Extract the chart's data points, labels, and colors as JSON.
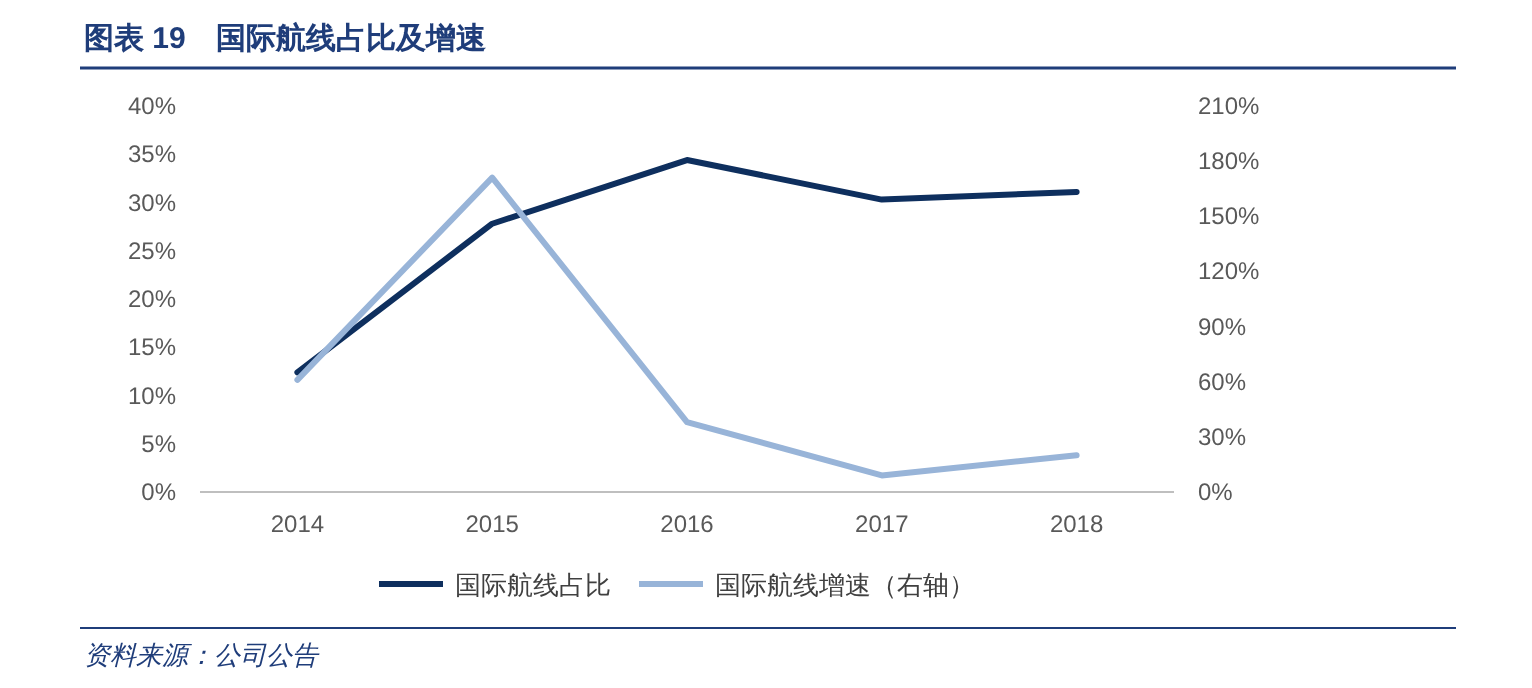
{
  "chart_data": {
    "type": "line",
    "title": "图表 19　国际航线占比及增速",
    "categories": [
      "2014",
      "2015",
      "2016",
      "2017",
      "2018"
    ],
    "series": [
      {
        "name": "国际航线占比",
        "color": "#0e2f5e",
        "values": [
          12.4,
          27.8,
          34.4,
          30.3,
          31.1
        ]
      },
      {
        "name": "国际航线增速（右轴）",
        "color": "#98b4d8",
        "axis": "y2",
        "values": [
          61,
          171,
          38,
          9,
          20
        ]
      }
    ],
    "ylim": [
      0,
      40
    ],
    "yticks": [
      {
        "value": 0,
        "label": "0%"
      },
      {
        "value": 5,
        "label": "5%"
      },
      {
        "value": 10,
        "label": "10%"
      },
      {
        "value": 15,
        "label": "15%"
      },
      {
        "value": 20,
        "label": "20%"
      },
      {
        "value": 25,
        "label": "25%"
      },
      {
        "value": 30,
        "label": "30%"
      },
      {
        "value": 35,
        "label": "35%"
      },
      {
        "value": 40,
        "label": "40%"
      }
    ],
    "y2lim": [
      0,
      210
    ],
    "y2ticks": [
      {
        "value": 0,
        "label": "0%"
      },
      {
        "value": 30,
        "label": "30%"
      },
      {
        "value": 60,
        "label": "60%"
      },
      {
        "value": 90,
        "label": "90%"
      },
      {
        "value": 120,
        "label": "120%"
      },
      {
        "value": 150,
        "label": "150%"
      },
      {
        "value": 180,
        "label": "180%"
      },
      {
        "value": 210,
        "label": "210%"
      }
    ],
    "legend": "bottom",
    "grid": false,
    "marker": "none",
    "line_style": "solid",
    "annotations": [
      "资料来源：公司公告"
    ]
  }
}
